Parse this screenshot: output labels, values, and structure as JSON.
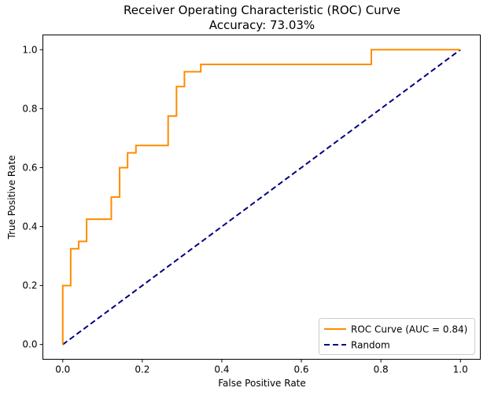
{
  "chart_data": {
    "type": "line",
    "title": "Receiver Operating Characteristic (ROC) Curve",
    "subtitle": "Accuracy: 73.03%",
    "xlabel": "False Positive Rate",
    "ylabel": "True Positive Rate",
    "xlim": [
      -0.05,
      1.05
    ],
    "ylim": [
      -0.05,
      1.05
    ],
    "xticks": [
      0.0,
      0.2,
      0.4,
      0.6,
      0.8,
      1.0
    ],
    "xtick_labels": [
      "0.0",
      "0.2",
      "0.4",
      "0.6",
      "0.8",
      "1.0"
    ],
    "yticks": [
      0.0,
      0.2,
      0.4,
      0.6,
      0.8,
      1.0
    ],
    "ytick_labels": [
      "0.0",
      "0.2",
      "0.4",
      "0.6",
      "0.8",
      "1.0"
    ],
    "grid": false,
    "legend_position": "lower right",
    "series": [
      {
        "name": "ROC Curve (AUC = 0.84)",
        "color": "#ff8c00",
        "style": "solid",
        "x": [
          0.0,
          0.0,
          0.02,
          0.02,
          0.04,
          0.04,
          0.06,
          0.06,
          0.122,
          0.122,
          0.143,
          0.143,
          0.163,
          0.163,
          0.184,
          0.184,
          0.265,
          0.265,
          0.286,
          0.286,
          0.306,
          0.306,
          0.347,
          0.347,
          0.776,
          0.776,
          1.0
        ],
        "y": [
          0.0,
          0.2,
          0.2,
          0.325,
          0.325,
          0.35,
          0.35,
          0.425,
          0.425,
          0.5,
          0.5,
          0.6,
          0.6,
          0.65,
          0.65,
          0.675,
          0.675,
          0.775,
          0.775,
          0.875,
          0.875,
          0.925,
          0.925,
          0.95,
          0.95,
          1.0,
          1.0
        ]
      },
      {
        "name": "Random",
        "color": "#000080",
        "style": "dashed",
        "x": [
          0.0,
          1.0
        ],
        "y": [
          0.0,
          1.0
        ]
      }
    ]
  }
}
